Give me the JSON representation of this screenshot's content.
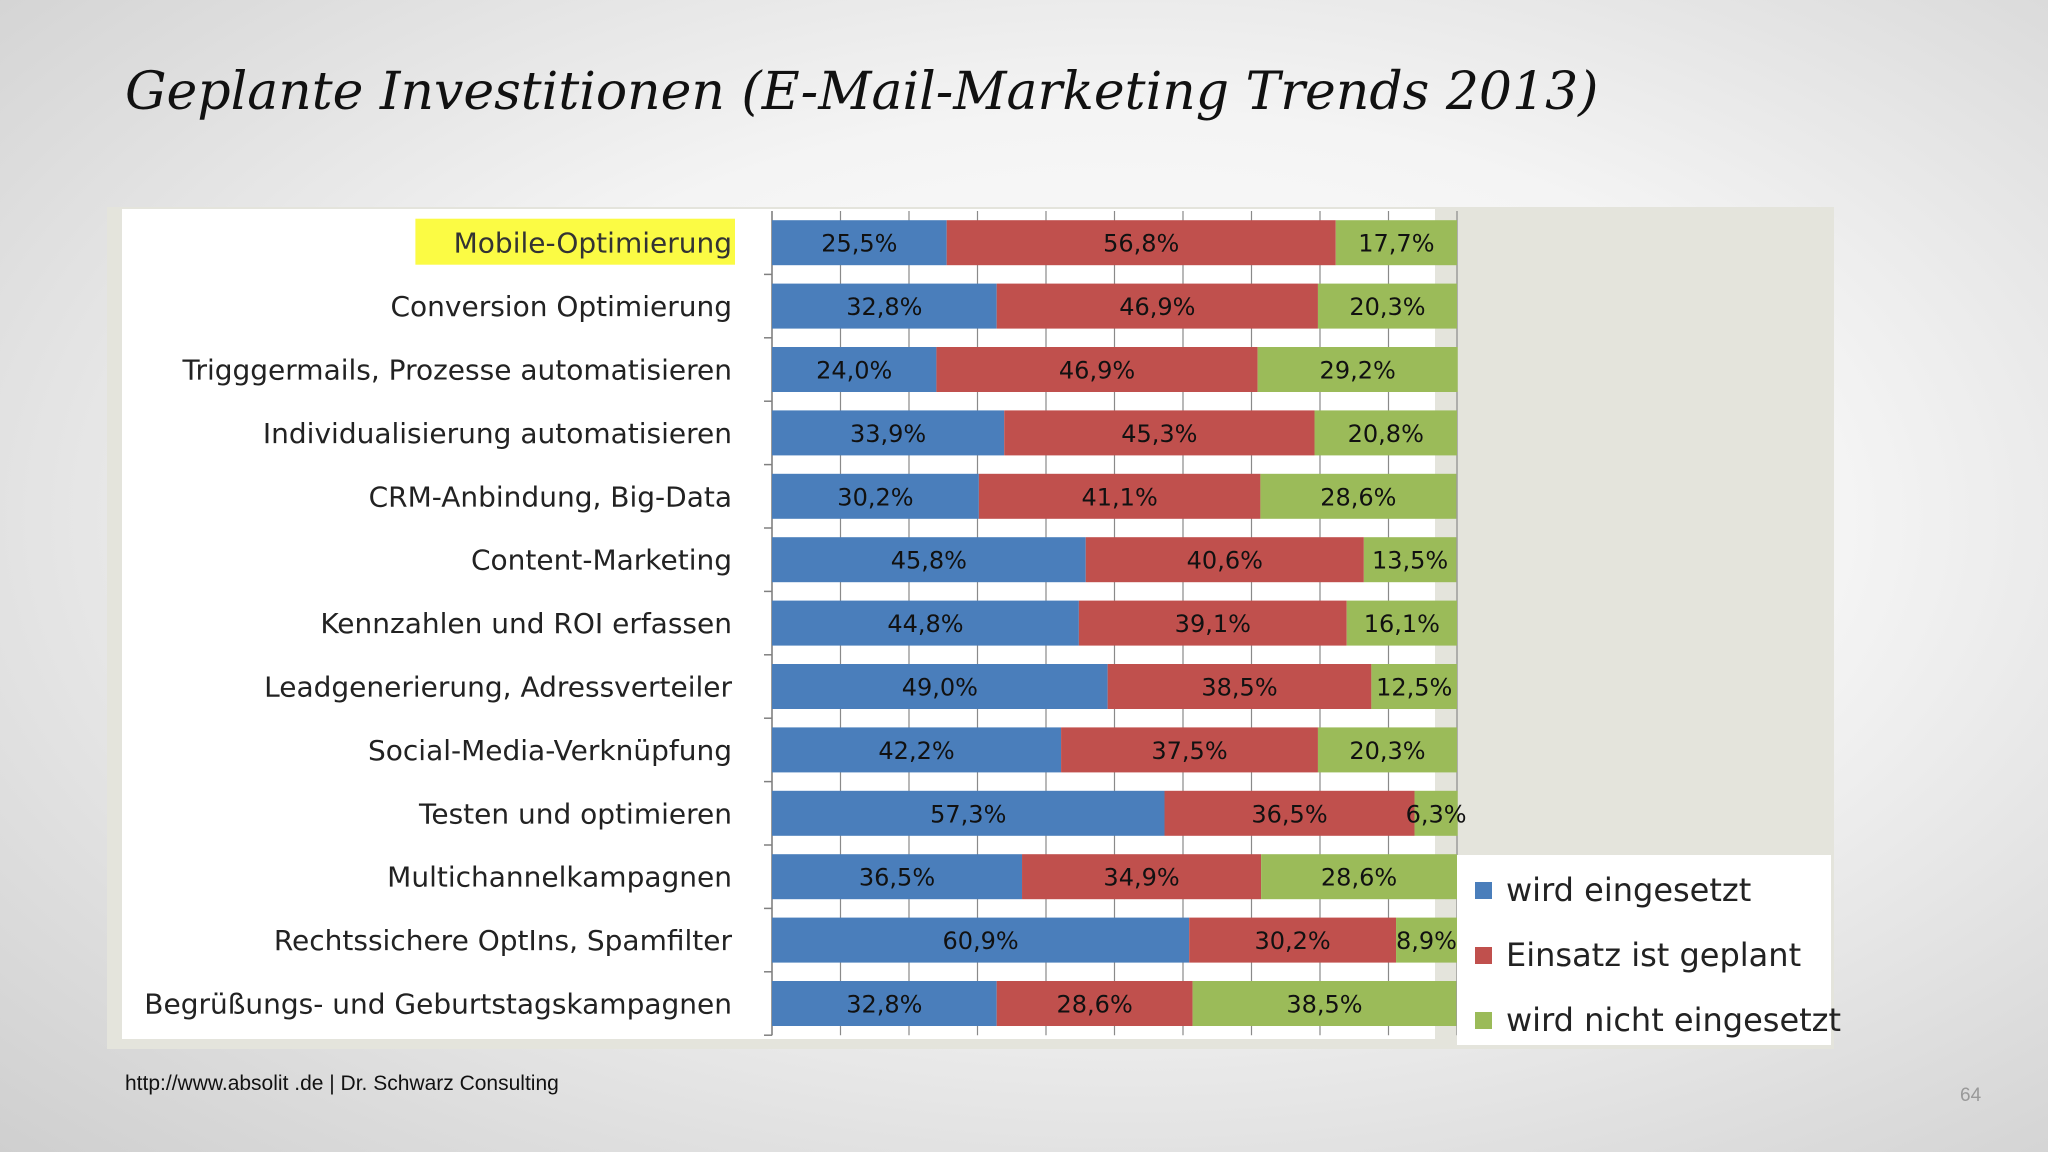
{
  "slide": {
    "title": "Geplante Investitionen (E-Mail-Marketing Trends 2013)",
    "source": "http://www.absolit .de | Dr. Schwarz Consulting",
    "page_number": "64"
  },
  "chart_data": {
    "type": "bar",
    "orientation": "horizontal",
    "stacked": true,
    "percent": true,
    "categories": [
      "Mobile-Optimierung",
      "Conversion Optimierung",
      "Trigggermails, Prozesse automatisieren",
      "Individualisierung automatisieren",
      "CRM-Anbindung, Big-Data",
      "Content-Marketing",
      "Kennzahlen und ROI erfassen",
      "Leadgenerierung, Adressverteiler",
      "Social-Media-Verknüpfung",
      "Testen und optimieren",
      "Multichannelkampagnen",
      "Rechtssichere OptIns, Spamfilter",
      "Begrüßungs- und Geburtstagskampagnen"
    ],
    "highlighted_category": "Mobile-Optimierung",
    "highlight_color": "#fbfb44",
    "series": [
      {
        "name": "wird eingesetzt",
        "color": "#4a7ebb",
        "values": [
          25.5,
          32.8,
          24.0,
          33.9,
          30.2,
          45.8,
          44.8,
          49.0,
          42.2,
          57.3,
          36.5,
          60.9,
          32.8
        ],
        "labels": [
          "25,5%",
          "32,8%",
          "24,0%",
          "33,9%",
          "30,2%",
          "45,8%",
          "44,8%",
          "49,0%",
          "42,2%",
          "57,3%",
          "36,5%",
          "60,9%",
          "32,8%"
        ]
      },
      {
        "name": "Einsatz ist geplant",
        "color": "#c0504d",
        "values": [
          56.8,
          46.9,
          46.9,
          45.3,
          41.1,
          40.6,
          39.1,
          38.5,
          37.5,
          36.5,
          34.9,
          30.2,
          28.6
        ],
        "labels": [
          "56,8%",
          "46,9%",
          "46,9%",
          "45,3%",
          "41,1%",
          "40,6%",
          "39,1%",
          "38,5%",
          "37,5%",
          "36,5%",
          "34,9%",
          "30,2%",
          "28,6%"
        ]
      },
      {
        "name": "wird nicht eingesetzt",
        "color": "#9bbb59",
        "values": [
          17.7,
          20.3,
          29.2,
          20.8,
          28.6,
          13.5,
          16.1,
          12.5,
          20.3,
          6.3,
          28.6,
          8.9,
          38.5
        ],
        "labels": [
          "17,7%",
          "20,3%",
          "29,2%",
          "20,8%",
          "28,6%",
          "13,5%",
          "16,1%",
          "12,5%",
          "20,3%",
          "6,3%",
          "28,6%",
          "8,9%",
          "38,5%"
        ]
      }
    ],
    "xlim": [
      0,
      100
    ],
    "grid": true,
    "legend_position": "bottom-right"
  }
}
